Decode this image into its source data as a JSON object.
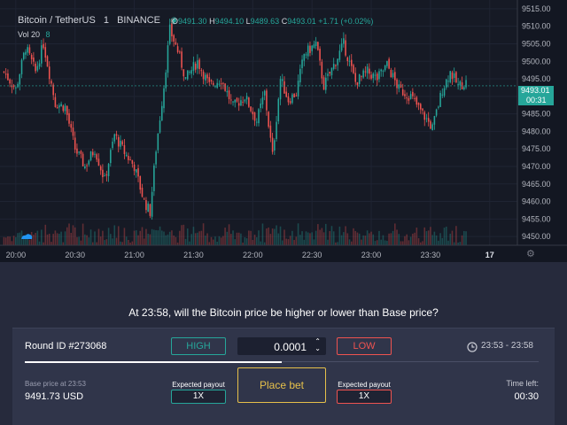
{
  "header": {
    "symbol": "Bitcoin / TetherUS",
    "interval": "1",
    "exchange": "BINANCE",
    "o_label": "O",
    "o_value": "9491.30",
    "h_label": "H",
    "h_value": "9494.10",
    "l_label": "L",
    "l_value": "9489.63",
    "c_label": "C",
    "c_value": "9493.01",
    "change": "+1.71 (+0.02%)",
    "vol_label": "Vol 20",
    "vol_value": "8"
  },
  "chart_data": {
    "type": "candlestick",
    "title": "",
    "y_ticks": [
      9450,
      9455,
      9460,
      9465,
      9470,
      9475,
      9480,
      9485,
      9490,
      9495,
      9500,
      9505,
      9510,
      9515
    ],
    "y_tick_labels": [
      "9450.00",
      "9455.00",
      "9460.00",
      "9465.00",
      "9470.00",
      "9475.00",
      "9480.00",
      "9485.00",
      "9490.00",
      "9495.00",
      "9500.00",
      "9505.00",
      "9510.00",
      "9515.00"
    ],
    "ylim": [
      9447.5,
      9517.5
    ],
    "x_tick_labels": [
      "20:00",
      "20:30",
      "21:00",
      "21:30",
      "22:00",
      "22:30",
      "23:00",
      "23:30",
      "17"
    ],
    "x_ticks_min": [
      0,
      30,
      60,
      90,
      120,
      150,
      180,
      210,
      240
    ],
    "x_range_min": [
      -8,
      254
    ],
    "last_price": "9493.01",
    "last_price_value": 9493.01,
    "countdown": "00:31",
    "up_color": "#26a69a",
    "down_color": "#ef5350",
    "close_path": [
      [
        -6,
        9497
      ],
      [
        0,
        9492
      ],
      [
        5,
        9504
      ],
      [
        10,
        9497
      ],
      [
        14,
        9505
      ],
      [
        20,
        9488
      ],
      [
        25,
        9487
      ],
      [
        30,
        9475
      ],
      [
        35,
        9470
      ],
      [
        40,
        9475
      ],
      [
        45,
        9466
      ],
      [
        50,
        9479
      ],
      [
        55,
        9474
      ],
      [
        60,
        9470
      ],
      [
        65,
        9460
      ],
      [
        68,
        9457
      ],
      [
        71,
        9475
      ],
      [
        75,
        9493
      ],
      [
        78,
        9509
      ],
      [
        82,
        9503
      ],
      [
        86,
        9495
      ],
      [
        92,
        9500
      ],
      [
        98,
        9493
      ],
      [
        104,
        9495
      ],
      [
        110,
        9487
      ],
      [
        116,
        9490
      ],
      [
        122,
        9483
      ],
      [
        126,
        9491
      ],
      [
        130,
        9473
      ],
      [
        134,
        9495
      ],
      [
        138,
        9489
      ],
      [
        142,
        9491
      ],
      [
        146,
        9502
      ],
      [
        152,
        9505
      ],
      [
        156,
        9493
      ],
      [
        162,
        9500
      ],
      [
        166,
        9505
      ],
      [
        172,
        9494
      ],
      [
        178,
        9497
      ],
      [
        183,
        9495
      ],
      [
        188,
        9499
      ],
      [
        194,
        9492
      ],
      [
        200,
        9490
      ],
      [
        206,
        9485
      ],
      [
        211,
        9481
      ],
      [
        216,
        9492
      ],
      [
        220,
        9497
      ],
      [
        224,
        9493
      ],
      [
        228,
        9494
      ]
    ],
    "volume_color": "#26a69a"
  },
  "bottom": {
    "question": "At 23:58, will the Bitcoin price be higher or lower than Base price?",
    "round_id": "Round ID #273068",
    "high_label": "HIGH",
    "amount": "0.0001",
    "low_label": "LOW",
    "time_range": "23:53 - 23:58",
    "base_price_label": "Base price at 23:53",
    "base_price_value": "9491.73 USD",
    "expected_payout_label": "Expected payout",
    "payout_high": "1X",
    "payout_low": "1X",
    "place_bet_label": "Place bet",
    "time_left_label": "Time left:",
    "time_left_value": "00:30",
    "progress_fraction": 0.5
  }
}
